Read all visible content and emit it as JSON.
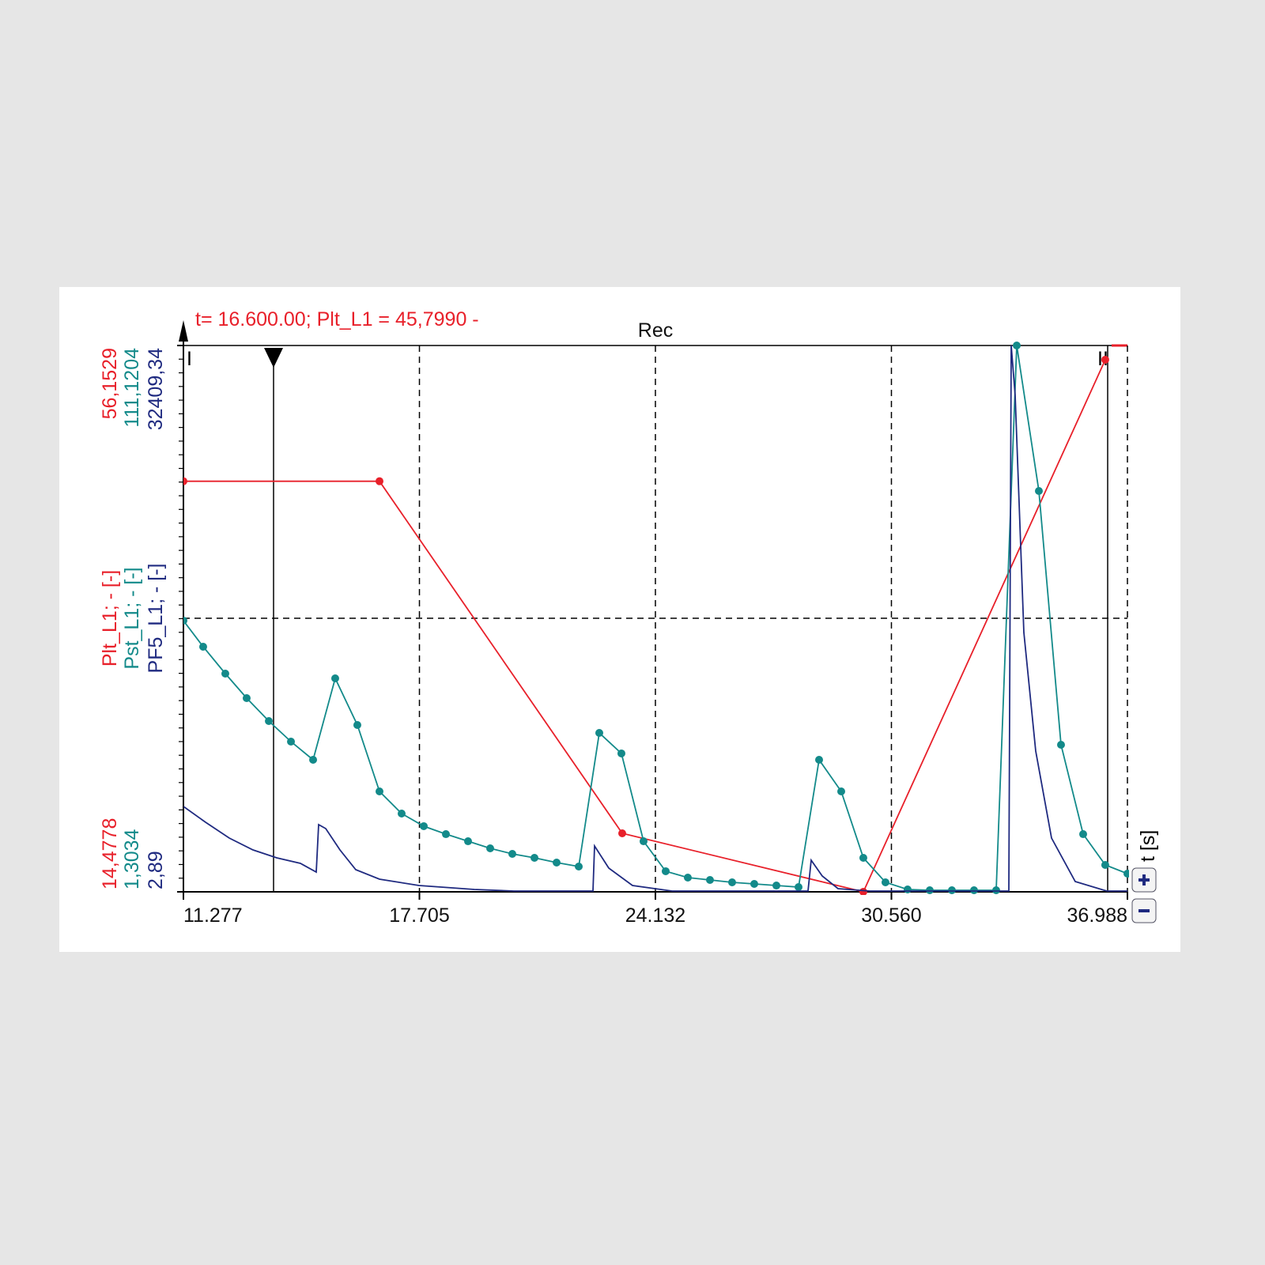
{
  "chart_data": {
    "type": "line",
    "title": "Rec",
    "annotation": "t= 16.600.00; Plt_L1 = 45,7990 -",
    "x_label": "t [s]",
    "cursor_markers": [
      "I",
      "II"
    ],
    "xlim": [
      11.277,
      36.988
    ],
    "xticks": [
      11.277,
      17.705,
      24.132,
      {
        "value": 30.56,
        "label": "30.560"
      },
      36.988
    ],
    "grid": true,
    "series": [
      {
        "name": "Plt_L1; - [-]",
        "color": "#e8202a",
        "marker": true,
        "ylim": [
          14.4778,
          56.1529
        ],
        "yticks": [
          {
            "value": 14.4778,
            "label": "14,4778"
          },
          {
            "value": 56.1529,
            "label": "56,1529"
          }
        ],
        "x": [
          11.277,
          16.617,
          23.228,
          29.795,
          36.384
        ],
        "values": [
          45.8,
          45.799,
          18.94,
          14.48,
          55.07
        ]
      },
      {
        "name": "Pst_L1; - [-]",
        "color": "#138a8a",
        "marker": true,
        "ylim": [
          1.3034,
          111.1204
        ],
        "yticks": [
          {
            "value": 1.3034,
            "label": "1,3034"
          },
          {
            "value": 111.1204,
            "label": "111,1204"
          }
        ],
        "x": [
          11.277,
          11.815,
          12.418,
          12.999,
          13.603,
          14.206,
          14.809,
          15.411,
          16.014,
          16.617,
          17.22,
          17.823,
          18.426,
          19.029,
          19.632,
          20.235,
          20.838,
          21.441,
          22.044,
          22.603,
          23.206,
          23.809,
          24.412,
          25.015,
          25.618,
          26.221,
          26.824,
          27.427,
          28.03,
          28.59,
          29.193,
          29.795,
          30.398,
          31.001,
          31.604,
          32.207,
          32.81,
          33.413,
          33.973,
          34.576,
          35.179,
          35.782,
          36.384,
          36.988
        ],
        "values": [
          55.82,
          50.57,
          45.17,
          40.24,
          35.63,
          31.5,
          27.84,
          44.21,
          34.84,
          21.49,
          17.04,
          14.5,
          12.9,
          11.47,
          10.04,
          8.93,
          8.14,
          7.18,
          6.39,
          33.25,
          29.12,
          11.47,
          5.44,
          4.16,
          3.69,
          3.21,
          2.89,
          2.57,
          2.26,
          27.84,
          21.49,
          8.14,
          3.21,
          1.78,
          1.62,
          1.62,
          1.62,
          1.62,
          111.12,
          81.88,
          30.86,
          12.9,
          6.71,
          4.96
        ]
      },
      {
        "name": "PF5_L1; - [-]",
        "color": "#1f2a80",
        "marker": false,
        "ylim": [
          2.89,
          32409.34
        ],
        "yticks": [
          {
            "value": 2.89,
            "label": "2,89"
          },
          {
            "value": 32409.34,
            "label": "32409,34"
          }
        ],
        "x": [
          11.277,
          11.88,
          12.526,
          13.172,
          13.818,
          14.464,
          14.895,
          14.959,
          15.153,
          15.541,
          15.971,
          16.617,
          17.694,
          19.201,
          20.278,
          22.431,
          22.474,
          22.862,
          23.508,
          24.584,
          28.288,
          28.374,
          28.676,
          29.106,
          29.968,
          33.758,
          33.822,
          33.93,
          34.167,
          34.49,
          34.92,
          35.566,
          36.428,
          36.988
        ],
        "values": [
          5068,
          4130,
          3192,
          2488,
          2019,
          1691,
          1175,
          3989,
          3755,
          2488,
          1316,
          753,
          378,
          144,
          50,
          50,
          2723,
          1410,
          378,
          50,
          50,
          1879,
          941,
          191,
          50,
          50,
          32409.34,
          29455,
          15386,
          8351,
          3192,
          613,
          50,
          50
        ]
      }
    ]
  }
}
